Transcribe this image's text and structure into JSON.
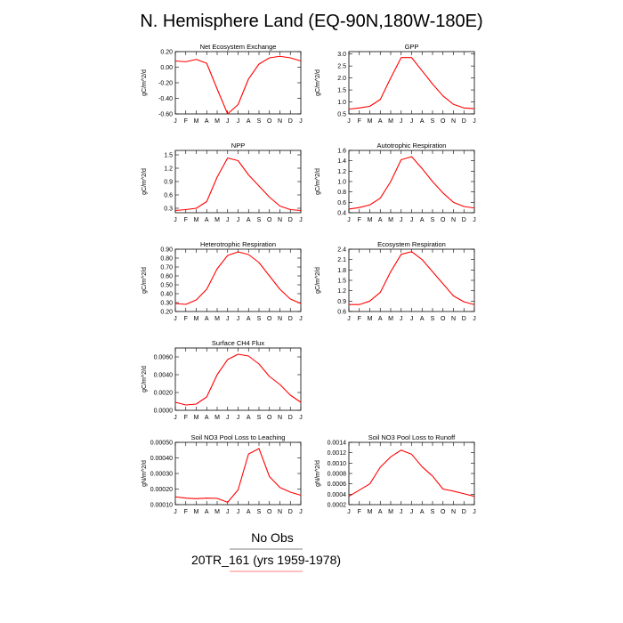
{
  "figure": {
    "title": "N. Hemisphere Land (EQ-90N,180W-180E)"
  },
  "legend": {
    "entries": [
      {
        "label": "No Obs",
        "color": "#000000"
      },
      {
        "label": "20TR_161 (yrs 1959-1978)",
        "color": "#ff0000"
      }
    ]
  },
  "chart_data": [
    {
      "type": "line",
      "title": "Net Ecosystem Exchange",
      "xlabel": "",
      "ylabel": "gC/m^2/d",
      "x": [
        "J",
        "F",
        "M",
        "A",
        "M",
        "J",
        "J",
        "A",
        "S",
        "O",
        "N",
        "D",
        "J"
      ],
      "ylim": [
        -0.6,
        0.2
      ],
      "yticks": [
        "0.20",
        "0.00",
        "-0.20",
        "-0.40",
        "-0.60"
      ],
      "series": [
        {
          "color": "#ff0000",
          "values": [
            0.08,
            0.07,
            0.1,
            0.05,
            -0.28,
            -0.6,
            -0.48,
            -0.15,
            0.04,
            0.12,
            0.14,
            0.12,
            0.08
          ]
        }
      ]
    },
    {
      "type": "line",
      "title": "GPP",
      "xlabel": "",
      "ylabel": "gC/m^2/d",
      "x": [
        "J",
        "F",
        "M",
        "A",
        "M",
        "J",
        "J",
        "A",
        "S",
        "O",
        "N",
        "D",
        "J"
      ],
      "ylim": [
        0.5,
        3.1
      ],
      "yticks": [
        "3.0",
        "2.5",
        "2.0",
        "1.5",
        "1.0",
        "0.5"
      ],
      "series": [
        {
          "color": "#ff0000",
          "values": [
            0.7,
            0.75,
            0.82,
            1.1,
            2.0,
            2.85,
            2.85,
            2.3,
            1.75,
            1.25,
            0.9,
            0.75,
            0.72
          ]
        }
      ]
    },
    {
      "type": "line",
      "title": "NPP",
      "xlabel": "",
      "ylabel": "gC/m^2/d",
      "x": [
        "J",
        "F",
        "M",
        "A",
        "M",
        "J",
        "J",
        "A",
        "S",
        "O",
        "N",
        "D",
        "J"
      ],
      "ylim": [
        0.2,
        1.6
      ],
      "yticks": [
        "1.5",
        "1.2",
        "0.9",
        "0.6",
        "0.3"
      ],
      "series": [
        {
          "color": "#ff0000",
          "values": [
            0.25,
            0.27,
            0.3,
            0.45,
            1.0,
            1.43,
            1.37,
            1.05,
            0.8,
            0.55,
            0.35,
            0.27,
            0.25
          ]
        }
      ]
    },
    {
      "type": "line",
      "title": "Autotrophic Respiration",
      "xlabel": "",
      "ylabel": "gC/m^2/d",
      "x": [
        "J",
        "F",
        "M",
        "A",
        "M",
        "J",
        "J",
        "A",
        "S",
        "O",
        "N",
        "D",
        "J"
      ],
      "ylim": [
        0.4,
        1.6
      ],
      "yticks": [
        "1.6",
        "1.4",
        "1.2",
        "1.0",
        "0.8",
        "0.6",
        "0.4"
      ],
      "series": [
        {
          "color": "#ff0000",
          "values": [
            0.47,
            0.5,
            0.55,
            0.68,
            1.0,
            1.42,
            1.48,
            1.25,
            1.0,
            0.78,
            0.6,
            0.52,
            0.49
          ]
        }
      ]
    },
    {
      "type": "line",
      "title": "Heterotrophic Respiration",
      "xlabel": "",
      "ylabel": "gC/m^2/d",
      "x": [
        "J",
        "F",
        "M",
        "A",
        "M",
        "J",
        "J",
        "A",
        "S",
        "O",
        "N",
        "D",
        "J"
      ],
      "ylim": [
        0.2,
        0.9
      ],
      "yticks": [
        "0.90",
        "0.80",
        "0.70",
        "0.60",
        "0.50",
        "0.40",
        "0.30",
        "0.20"
      ],
      "series": [
        {
          "color": "#ff0000",
          "values": [
            0.29,
            0.28,
            0.33,
            0.45,
            0.68,
            0.83,
            0.87,
            0.84,
            0.75,
            0.6,
            0.45,
            0.34,
            0.29
          ]
        }
      ]
    },
    {
      "type": "line",
      "title": "Ecosystem Respiration",
      "xlabel": "",
      "ylabel": "gC/m^2/d",
      "x": [
        "J",
        "F",
        "M",
        "A",
        "M",
        "J",
        "J",
        "A",
        "S",
        "O",
        "N",
        "D",
        "J"
      ],
      "ylim": [
        0.6,
        2.4
      ],
      "yticks": [
        "2.4",
        "2.1",
        "1.8",
        "1.5",
        "1.2",
        "0.9",
        "0.6"
      ],
      "series": [
        {
          "color": "#ff0000",
          "values": [
            0.8,
            0.8,
            0.9,
            1.15,
            1.75,
            2.25,
            2.33,
            2.1,
            1.75,
            1.4,
            1.05,
            0.88,
            0.8
          ]
        }
      ]
    },
    {
      "type": "line",
      "title": "Surface CH4 Flux",
      "xlabel": "",
      "ylabel": "gC/m^2/d",
      "x": [
        "J",
        "F",
        "M",
        "A",
        "M",
        "J",
        "J",
        "A",
        "S",
        "O",
        "N",
        "D",
        "J"
      ],
      "ylim": [
        0.0,
        0.007
      ],
      "yticks": [
        "0.0060",
        "0.0040",
        "0.0020",
        "0.0000"
      ],
      "series": [
        {
          "color": "#ff0000",
          "values": [
            0.0009,
            0.0006,
            0.0007,
            0.0015,
            0.004,
            0.0057,
            0.0063,
            0.0061,
            0.0052,
            0.0038,
            0.0029,
            0.0017,
            0.0009
          ]
        }
      ]
    },
    {
      "type": "line",
      "title": "Soil NO3 Pool Loss to Leaching",
      "xlabel": "",
      "ylabel": "gN/m^2/d",
      "x": [
        "J",
        "F",
        "M",
        "A",
        "M",
        "J",
        "J",
        "A",
        "S",
        "O",
        "N",
        "D",
        "J"
      ],
      "ylim": [
        0.0001,
        0.0005
      ],
      "yticks": [
        "0.00050",
        "0.00040",
        "0.00030",
        "0.00020",
        "0.00010"
      ],
      "series": [
        {
          "color": "#ff0000",
          "values": [
            0.00015,
            0.000142,
            0.000138,
            0.000142,
            0.00014,
            0.000115,
            0.000195,
            0.000425,
            0.00046,
            0.00028,
            0.00021,
            0.00018,
            0.00016
          ]
        }
      ]
    },
    {
      "type": "line",
      "title": "Soil NO3 Pool Loss to Runoff",
      "xlabel": "",
      "ylabel": "gN/m^2/d",
      "x": [
        "J",
        "F",
        "M",
        "A",
        "M",
        "J",
        "J",
        "A",
        "S",
        "O",
        "N",
        "D",
        "J"
      ],
      "ylim": [
        0.0002,
        0.0014
      ],
      "yticks": [
        "0.0014",
        "0.0012",
        "0.0010",
        "0.0008",
        "0.0006",
        "0.0004",
        "0.0002"
      ],
      "series": [
        {
          "color": "#ff0000",
          "values": [
            0.00036,
            0.00048,
            0.0006,
            0.00092,
            0.00112,
            0.00125,
            0.00117,
            0.00093,
            0.00075,
            0.0005,
            0.00046,
            0.00041,
            0.00036
          ]
        }
      ]
    }
  ]
}
